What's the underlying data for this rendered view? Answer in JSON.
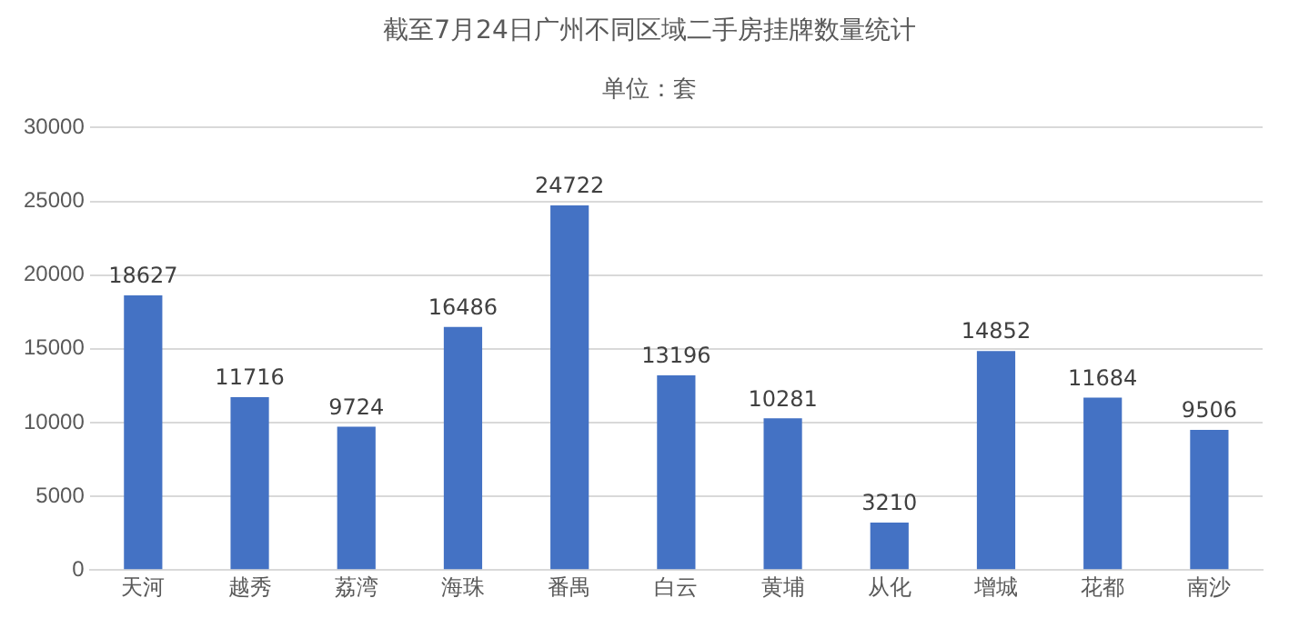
{
  "chart_data": {
    "type": "bar",
    "title": "截至7月24日广州不同区域二手房挂牌数量统计",
    "subtitle": "单位：套",
    "categories": [
      "天河",
      "越秀",
      "荔湾",
      "海珠",
      "番禺",
      "白云",
      "黄埔",
      "从化",
      "增城",
      "花都",
      "南沙"
    ],
    "values": [
      18627,
      11716,
      9724,
      16486,
      24722,
      13196,
      10281,
      3210,
      14852,
      11684,
      9506
    ],
    "color": "#4472c4",
    "ylim": [
      0,
      30000
    ],
    "yticks": [
      0,
      5000,
      10000,
      15000,
      20000,
      25000,
      30000
    ],
    "grid": "y",
    "data_labels": true
  }
}
